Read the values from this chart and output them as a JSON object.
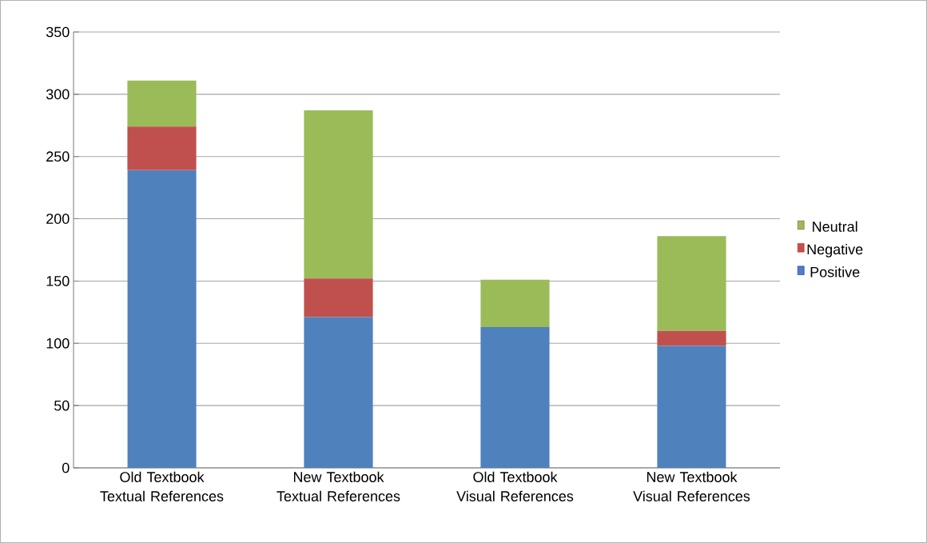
{
  "chart_data": {
    "type": "bar",
    "stacked": true,
    "categories": [
      "Old Textbook Textual References",
      "New Textbook Textual References",
      "Old Textbook Visual References",
      "New Textbook Visual References"
    ],
    "series": [
      {
        "name": "Positive",
        "color": "#4f81bd",
        "values": [
          239,
          121,
          113,
          98
        ]
      },
      {
        "name": "Negative",
        "color": "#c0504d",
        "values": [
          35,
          31,
          0,
          12
        ]
      },
      {
        "name": "Neutral",
        "color": "#9bbb59",
        "values": [
          37,
          135,
          38,
          76
        ]
      }
    ],
    "ylim": [
      0,
      350
    ],
    "yticks": [
      0,
      50,
      100,
      150,
      200,
      250,
      300,
      350
    ],
    "grid": "y",
    "legend": "right"
  }
}
